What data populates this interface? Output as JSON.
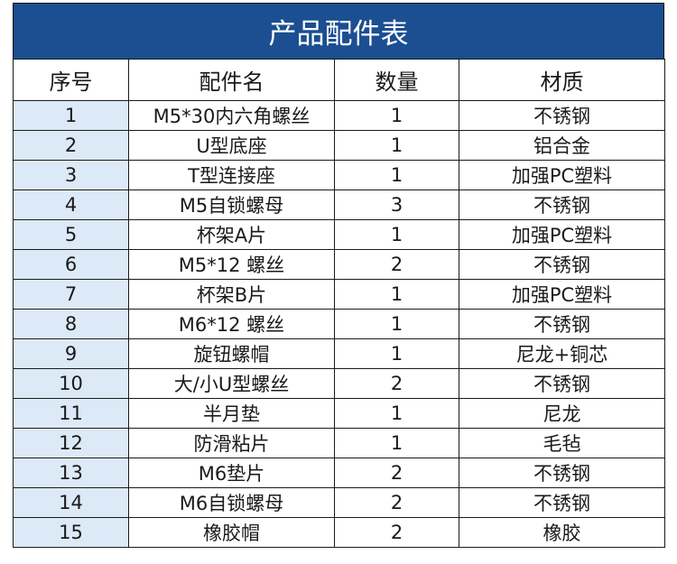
{
  "title": "产品配件表",
  "headers": [
    "序号",
    "配件名",
    "数量",
    "材质"
  ],
  "rows": [
    [
      "1",
      "M5*30内六角螺丝",
      "1",
      "不锈钢"
    ],
    [
      "2",
      "U型底座",
      "1",
      "铝合金"
    ],
    [
      "3",
      "T型连接座",
      "1",
      "加强PC塑料"
    ],
    [
      "4",
      "M5自锁螺母",
      "3",
      "不锈钢"
    ],
    [
      "5",
      "杯架A片",
      "1",
      "加强PC塑料"
    ],
    [
      "6",
      "M5*12 螺丝",
      "2",
      "不锈钢"
    ],
    [
      "7",
      "杯架B片",
      "1",
      "加强PC塑料"
    ],
    [
      "8",
      "M6*12 螺丝",
      "1",
      "不锈钢"
    ],
    [
      "9",
      "旋钮螺帽",
      "1",
      "尼龙+铜芯"
    ],
    [
      "10",
      "大/小U型螺丝",
      "2",
      "不锈钢"
    ],
    [
      "11",
      "半月垫",
      "1",
      "尼龙"
    ],
    [
      "12",
      "防滑粘片",
      "1",
      "毛毡"
    ],
    [
      "13",
      "M6垫片",
      "2",
      "不锈钢"
    ],
    [
      "14",
      "M6自锁螺母",
      "2",
      "不锈钢"
    ],
    [
      "15",
      "橡胶帽",
      "2",
      "橡胶"
    ]
  ],
  "colors": {
    "title_bg": "#1b4f91",
    "number_col_bg": "#dce9f7"
  }
}
